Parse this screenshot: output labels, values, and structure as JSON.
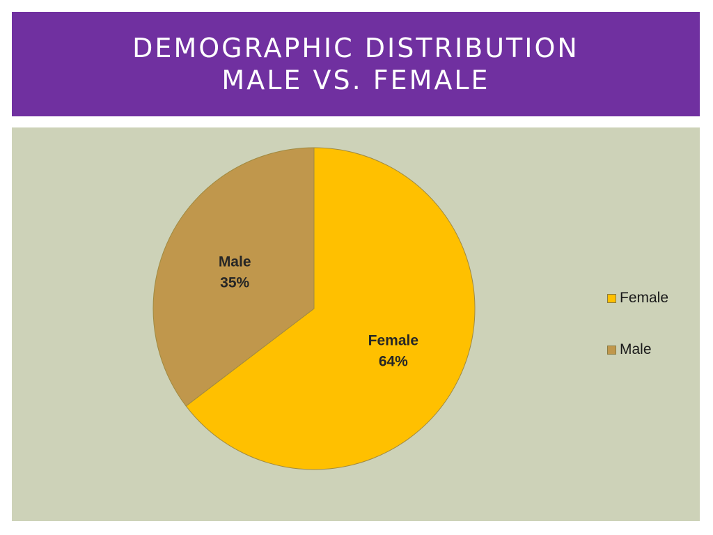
{
  "slide": {
    "title_line1": "DEMOGRAPHIC DISTRIBUTION",
    "title_line2": "MALE VS. FEMALE",
    "colors": {
      "title_band": "#7030a0",
      "title_text": "#ffffff",
      "chart_background": "#cdd2b8"
    }
  },
  "chart_data": {
    "type": "pie",
    "title": "",
    "slices": [
      {
        "name": "Female",
        "percent_label": "64%",
        "value": 64,
        "color": "#ffc000"
      },
      {
        "name": "Male",
        "percent_label": "35%",
        "value": 35,
        "color": "#c0974c"
      }
    ],
    "legend": {
      "position": "right",
      "entries": [
        "Female",
        "Male"
      ]
    },
    "start_angle": "12 o'clock, clockwise"
  }
}
